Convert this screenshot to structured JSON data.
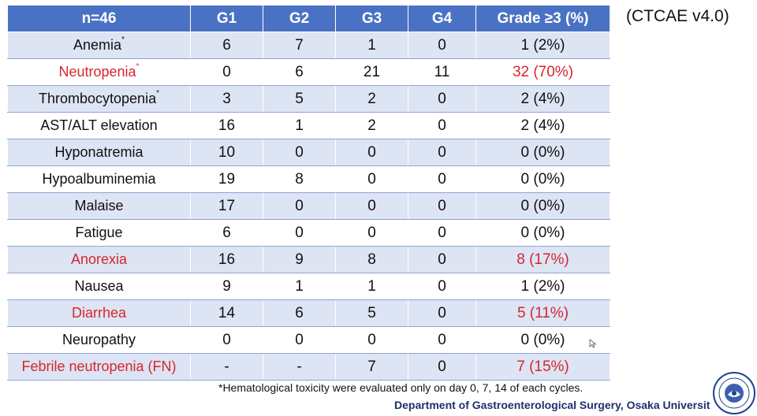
{
  "title_note": "(CTCAE v4.0)",
  "table": {
    "headers": [
      "n=46",
      "G1",
      "G2",
      "G3",
      "G4",
      "Grade ≥3 (%)"
    ],
    "rows": [
      {
        "label": "Anemia",
        "sup": "*",
        "g1": "6",
        "g2": "7",
        "g3": "1",
        "g4": "0",
        "grade3": "1 (2%)",
        "highlight": false
      },
      {
        "label": "Neutropenia",
        "sup": "*",
        "g1": "0",
        "g2": "6",
        "g3": "21",
        "g4": "11",
        "grade3": "32 (70%)",
        "highlight": true
      },
      {
        "label": "Thrombocytopenia",
        "sup": "*",
        "g1": "3",
        "g2": "5",
        "g3": "2",
        "g4": "0",
        "grade3": "2 (4%)",
        "highlight": false
      },
      {
        "label": "AST/ALT elevation",
        "sup": "",
        "g1": "16",
        "g2": "1",
        "g3": "2",
        "g4": "0",
        "grade3": "2 (4%)",
        "highlight": false
      },
      {
        "label": "Hyponatremia",
        "sup": "",
        "g1": "10",
        "g2": "0",
        "g3": "0",
        "g4": "0",
        "grade3": "0 (0%)",
        "highlight": false
      },
      {
        "label": "Hypoalbuminemia",
        "sup": "",
        "g1": "19",
        "g2": "8",
        "g3": "0",
        "g4": "0",
        "grade3": "0 (0%)",
        "highlight": false
      },
      {
        "label": "Malaise",
        "sup": "",
        "g1": "17",
        "g2": "0",
        "g3": "0",
        "g4": "0",
        "grade3": "0 (0%)",
        "highlight": false
      },
      {
        "label": "Fatigue",
        "sup": "",
        "g1": "6",
        "g2": "0",
        "g3": "0",
        "g4": "0",
        "grade3": "0 (0%)",
        "highlight": false
      },
      {
        "label": "Anorexia",
        "sup": "",
        "g1": "16",
        "g2": "9",
        "g3": "8",
        "g4": "0",
        "grade3": "8 (17%)",
        "highlight": true
      },
      {
        "label": "Nausea",
        "sup": "",
        "g1": "9",
        "g2": "1",
        "g3": "1",
        "g4": "0",
        "grade3": "1 (2%)",
        "highlight": false
      },
      {
        "label": "Diarrhea",
        "sup": "",
        "g1": "14",
        "g2": "6",
        "g3": "5",
        "g4": "0",
        "grade3": "5 (11%)",
        "highlight": true
      },
      {
        "label": "Neuropathy",
        "sup": "",
        "g1": "0",
        "g2": "0",
        "g3": "0",
        "g4": "0",
        "grade3": "0 (0%)",
        "highlight": false
      },
      {
        "label": "Febrile neutropenia (FN)",
        "sup": "",
        "g1": "-",
        "g2": "-",
        "g3": "7",
        "g4": "0",
        "grade3": "7 (15%)",
        "highlight": true
      }
    ]
  },
  "footnote": "*Hematological toxicity were evaluated only on day 0, 7, 14 of each cycles.",
  "department": "Department of Gastroenterological Surgery, Osaka Universit",
  "colors": {
    "header_bg": "#4a72c4",
    "row_alt": "#dde4f3",
    "highlight_text": "#d6262e",
    "department_text": "#1f2f6b"
  },
  "icons": {
    "seal": "university-seal-icon",
    "cursor": "mouse-cursor-icon"
  }
}
